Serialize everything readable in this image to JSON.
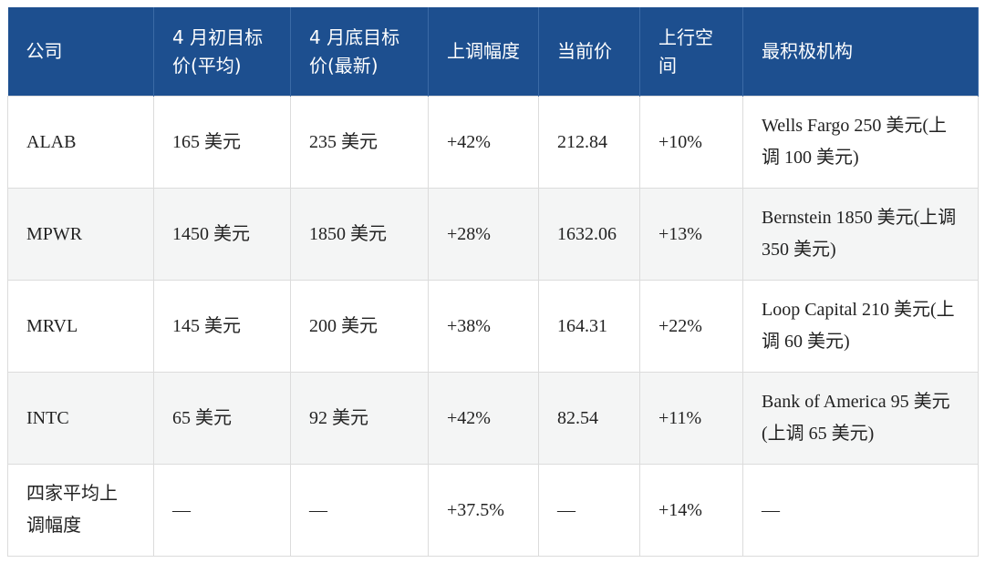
{
  "table": {
    "header": [
      "公司",
      "4 月初目标价(平均)",
      "4 月底目标价(最新)",
      "上调幅度",
      "当前价",
      "上行空间",
      "最积极机构"
    ],
    "rows": [
      [
        "ALAB",
        "165 美元",
        "235 美元",
        "+42%",
        "212.84",
        "+10%",
        "Wells Fargo 250 美元(上调 100 美元)"
      ],
      [
        "MPWR",
        "1450 美元",
        "1850 美元",
        "+28%",
        "1632.06",
        "+13%",
        "Bernstein 1850 美元(上调 350 美元)"
      ],
      [
        "MRVL",
        "145 美元",
        "200 美元",
        "+38%",
        "164.31",
        "+22%",
        "Loop Capital 210 美元(上调 60 美元)"
      ],
      [
        "INTC",
        "65 美元",
        "92 美元",
        "+42%",
        "82.54",
        "+11%",
        "Bank of America 95 美元(上调 65 美元)"
      ],
      [
        "四家平均上调幅度",
        "—",
        "—",
        "+37.5%",
        "—",
        "+14%",
        "—"
      ]
    ]
  }
}
